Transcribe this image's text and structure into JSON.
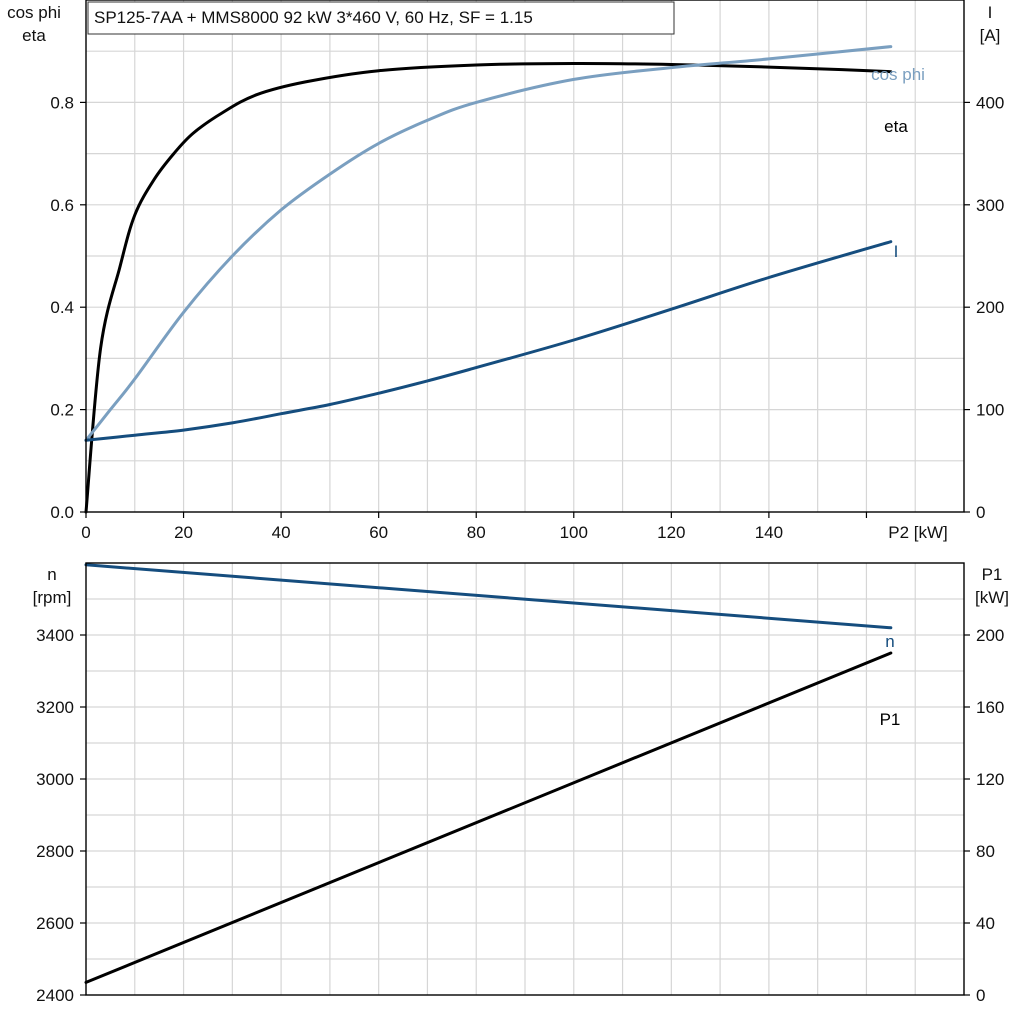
{
  "title": "SP125-7AA + MMS8000   92 kW   3*460 V, 60 Hz, SF = 1.15",
  "colors": {
    "eta": "#000000",
    "cos_phi": "#7a9fc0",
    "I": "#154d7e",
    "n": "#154d7e",
    "P1": "#000000",
    "grid": "#d6d6d6"
  },
  "chart_data": [
    {
      "type": "line",
      "x_label": "P2 [kW]",
      "x_ticks": [
        "0",
        "20",
        "40",
        "60",
        "80",
        "100",
        "120",
        "140"
      ],
      "xlim": [
        0,
        180
      ],
      "y_left_label": [
        "cos phi",
        "eta"
      ],
      "y_left_ticks": [
        "0.0",
        "0.2",
        "0.4",
        "0.6",
        "0.8"
      ],
      "y_left_lim": [
        0,
        1.0
      ],
      "y_right_label": [
        "I",
        "[A]"
      ],
      "y_right_ticks": [
        "0",
        "100",
        "200",
        "300",
        "400"
      ],
      "y_right_lim": [
        0,
        500
      ],
      "grid": true,
      "series": [
        {
          "name": "eta",
          "axis": "left",
          "x": [
            0,
            3,
            7,
            10,
            14,
            18,
            22,
            28,
            35,
            45,
            60,
            80,
            100,
            120,
            140,
            155,
            165
          ],
          "y": [
            0.0,
            0.32,
            0.48,
            0.58,
            0.65,
            0.7,
            0.74,
            0.78,
            0.815,
            0.84,
            0.862,
            0.873,
            0.876,
            0.874,
            0.869,
            0.864,
            0.86
          ]
        },
        {
          "name": "cos phi",
          "axis": "left",
          "x": [
            0,
            5,
            10,
            20,
            30,
            40,
            50,
            60,
            70,
            80,
            100,
            120,
            140,
            165
          ],
          "y": [
            0.14,
            0.2,
            0.26,
            0.39,
            0.5,
            0.59,
            0.66,
            0.72,
            0.765,
            0.8,
            0.845,
            0.868,
            0.885,
            0.909
          ]
        },
        {
          "name": "I",
          "axis": "right",
          "x": [
            0,
            10,
            20,
            30,
            40,
            50,
            60,
            70,
            80,
            100,
            120,
            140,
            165
          ],
          "y": [
            70,
            75,
            80,
            87,
            96,
            105,
            116,
            128,
            141,
            168,
            198,
            229,
            264
          ]
        }
      ]
    },
    {
      "type": "line",
      "x_label": "",
      "xlim": [
        0,
        180
      ],
      "y_left_label": [
        "n",
        "[rpm]"
      ],
      "y_left_ticks": [
        "2400",
        "2600",
        "2800",
        "3000",
        "3200",
        "3400"
      ],
      "y_left_lim": [
        2400,
        3600
      ],
      "y_right_label": [
        "P1",
        "[kW]"
      ],
      "y_right_ticks": [
        "0",
        "40",
        "80",
        "120",
        "160",
        "200"
      ],
      "y_right_lim": [
        0,
        240
      ],
      "grid": true,
      "series": [
        {
          "name": "n",
          "axis": "left",
          "x": [
            0,
            165
          ],
          "y": [
            3595,
            3420
          ]
        },
        {
          "name": "P1",
          "axis": "right",
          "x": [
            0,
            165
          ],
          "y": [
            7,
            190
          ]
        }
      ]
    }
  ]
}
